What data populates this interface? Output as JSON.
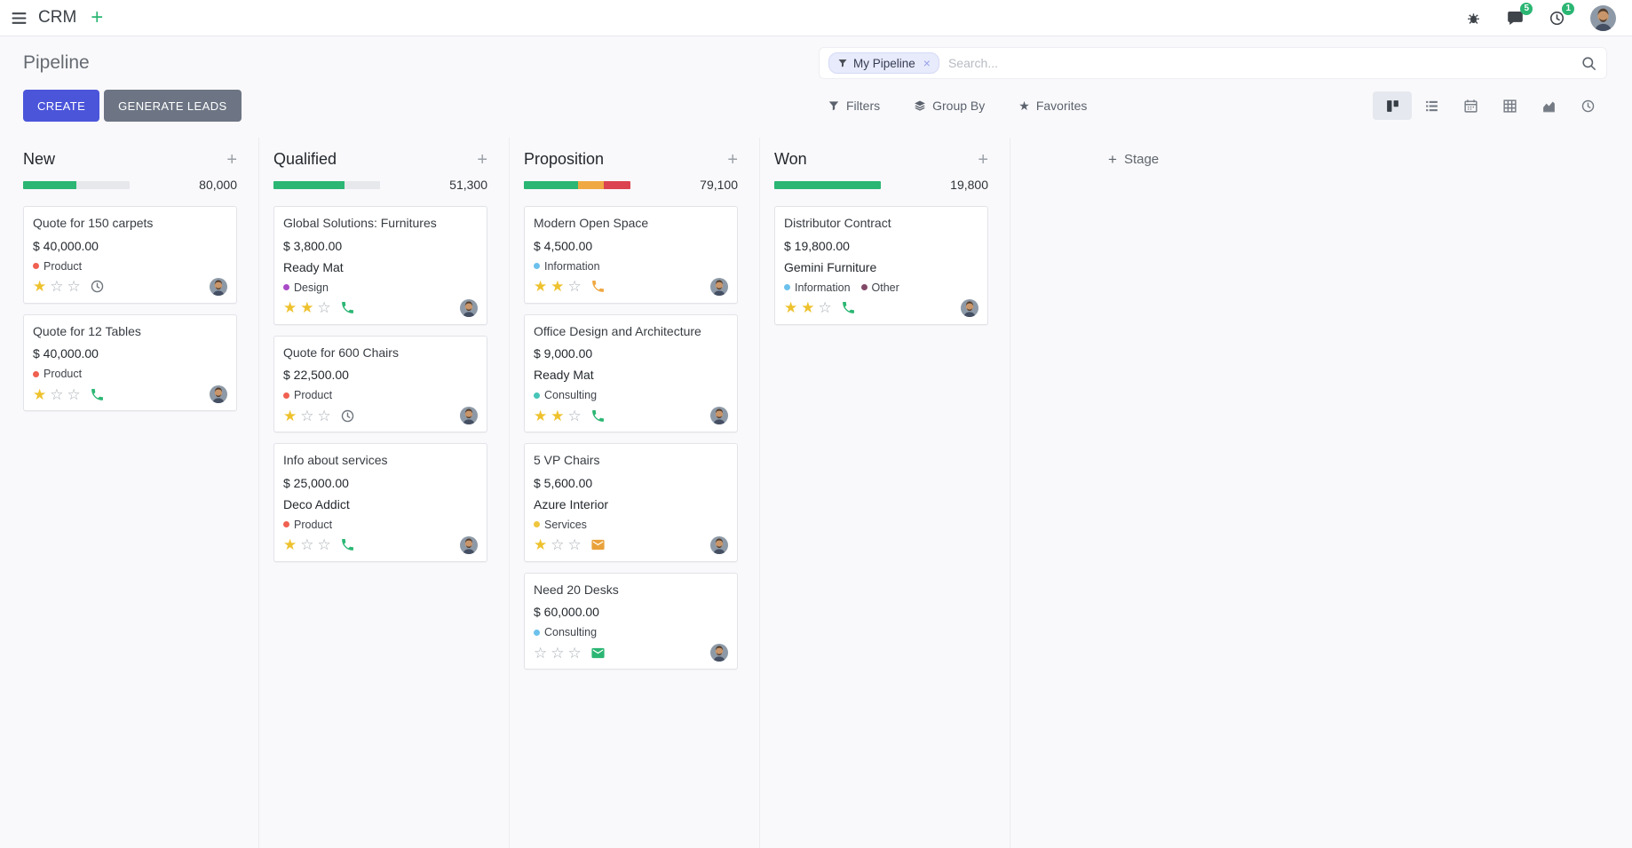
{
  "colors": {
    "primary": "#4b55da",
    "secondary": "#6d7584",
    "success": "#2bb673",
    "warning": "#f0a843",
    "danger": "#dc4350",
    "star": "#eec22e",
    "facet_bg": "#e8ebfb",
    "facet_border": "#d4d9f6"
  },
  "icons": {
    "plus": "+",
    "star_filled": "★",
    "star_empty": "☆",
    "favorites_star": "★",
    "facet_remove": "×"
  },
  "navbar": {
    "app_name": "CRM",
    "messages_count": "5",
    "activities_count": "1"
  },
  "control_panel": {
    "title": "Pipeline",
    "create_label": "CREATE",
    "generate_leads_label": "GENERATE LEADS",
    "filters_label": "Filters",
    "group_by_label": "Group By",
    "favorites_label": "Favorites",
    "search": {
      "facet_label": "My Pipeline",
      "placeholder": "Search..."
    }
  },
  "board": {
    "add_stage_label": "Stage",
    "columns": [
      {
        "name": "New",
        "amount": "80,000",
        "progress": [
          {
            "color": "#2bb673",
            "pct": 50
          },
          {
            "color": "#e7e8ec",
            "pct": 50
          }
        ],
        "cards": [
          {
            "title": "Quote for 150 carpets",
            "amount": "$ 40,000.00",
            "tags": [
              {
                "label": "Product",
                "color": "#f06050"
              }
            ],
            "stars": 1,
            "activity": {
              "icon": "clock",
              "color": "#6f767e"
            }
          },
          {
            "title": "Quote for 12 Tables",
            "amount": "$ 40,000.00",
            "tags": [
              {
                "label": "Product",
                "color": "#f06050"
              }
            ],
            "stars": 1,
            "activity": {
              "icon": "phone",
              "color": "#2bb673"
            }
          }
        ]
      },
      {
        "name": "Qualified",
        "amount": "51,300",
        "progress": [
          {
            "color": "#2bb673",
            "pct": 67
          },
          {
            "color": "#e7e8ec",
            "pct": 33
          }
        ],
        "cards": [
          {
            "title": "Global Solutions: Furnitures",
            "amount": "$ 3,800.00",
            "partner": "Ready Mat",
            "tags": [
              {
                "label": "Design",
                "color": "#a94bc6"
              }
            ],
            "stars": 2,
            "activity": {
              "icon": "phone",
              "color": "#2bb673"
            }
          },
          {
            "title": "Quote for 600 Chairs",
            "amount": "$ 22,500.00",
            "tags": [
              {
                "label": "Product",
                "color": "#f06050"
              }
            ],
            "stars": 1,
            "activity": {
              "icon": "clock",
              "color": "#6f767e"
            }
          },
          {
            "title": "Info about services",
            "amount": "$ 25,000.00",
            "partner": "Deco Addict",
            "tags": [
              {
                "label": "Product",
                "color": "#f06050"
              }
            ],
            "stars": 1,
            "activity": {
              "icon": "phone",
              "color": "#2bb673"
            }
          }
        ]
      },
      {
        "name": "Proposition",
        "amount": "79,100",
        "progress": [
          {
            "color": "#2bb673",
            "pct": 51
          },
          {
            "color": "#f0a843",
            "pct": 24
          },
          {
            "color": "#dc4350",
            "pct": 25
          }
        ],
        "cards": [
          {
            "title": "Modern Open Space",
            "amount": "$ 4,500.00",
            "tags": [
              {
                "label": "Information",
                "color": "#6cc1ed"
              }
            ],
            "stars": 2,
            "activity": {
              "icon": "phone",
              "color": "#f0a843"
            }
          },
          {
            "title": "Office Design and Architecture",
            "amount": "$ 9,000.00",
            "partner": "Ready Mat",
            "tags": [
              {
                "label": "Consulting",
                "color": "#47c5b8"
              }
            ],
            "stars": 2,
            "activity": {
              "icon": "phone",
              "color": "#2bb673"
            }
          },
          {
            "title": "5 VP Chairs",
            "amount": "$ 5,600.00",
            "partner": "Azure Interior",
            "tags": [
              {
                "label": "Services",
                "color": "#efc63e"
              }
            ],
            "stars": 1,
            "activity": {
              "icon": "envelope",
              "color": "#e9a23b"
            }
          },
          {
            "title": "Need 20 Desks",
            "amount": "$ 60,000.00",
            "tags": [
              {
                "label": "Consulting",
                "color": "#6cc1ed"
              }
            ],
            "stars": 0,
            "activity": {
              "icon": "envelope",
              "color": "#2bb673"
            }
          }
        ]
      },
      {
        "name": "Won",
        "amount": "19,800",
        "progress": [
          {
            "color": "#2bb673",
            "pct": 100
          }
        ],
        "cards": [
          {
            "title": "Distributor Contract",
            "amount": "$ 19,800.00",
            "partner": "Gemini Furniture",
            "tags": [
              {
                "label": "Information",
                "color": "#6cc1ed"
              },
              {
                "label": "Other",
                "color": "#814968"
              }
            ],
            "stars": 2,
            "activity": {
              "icon": "phone",
              "color": "#2bb673"
            }
          }
        ]
      }
    ]
  }
}
